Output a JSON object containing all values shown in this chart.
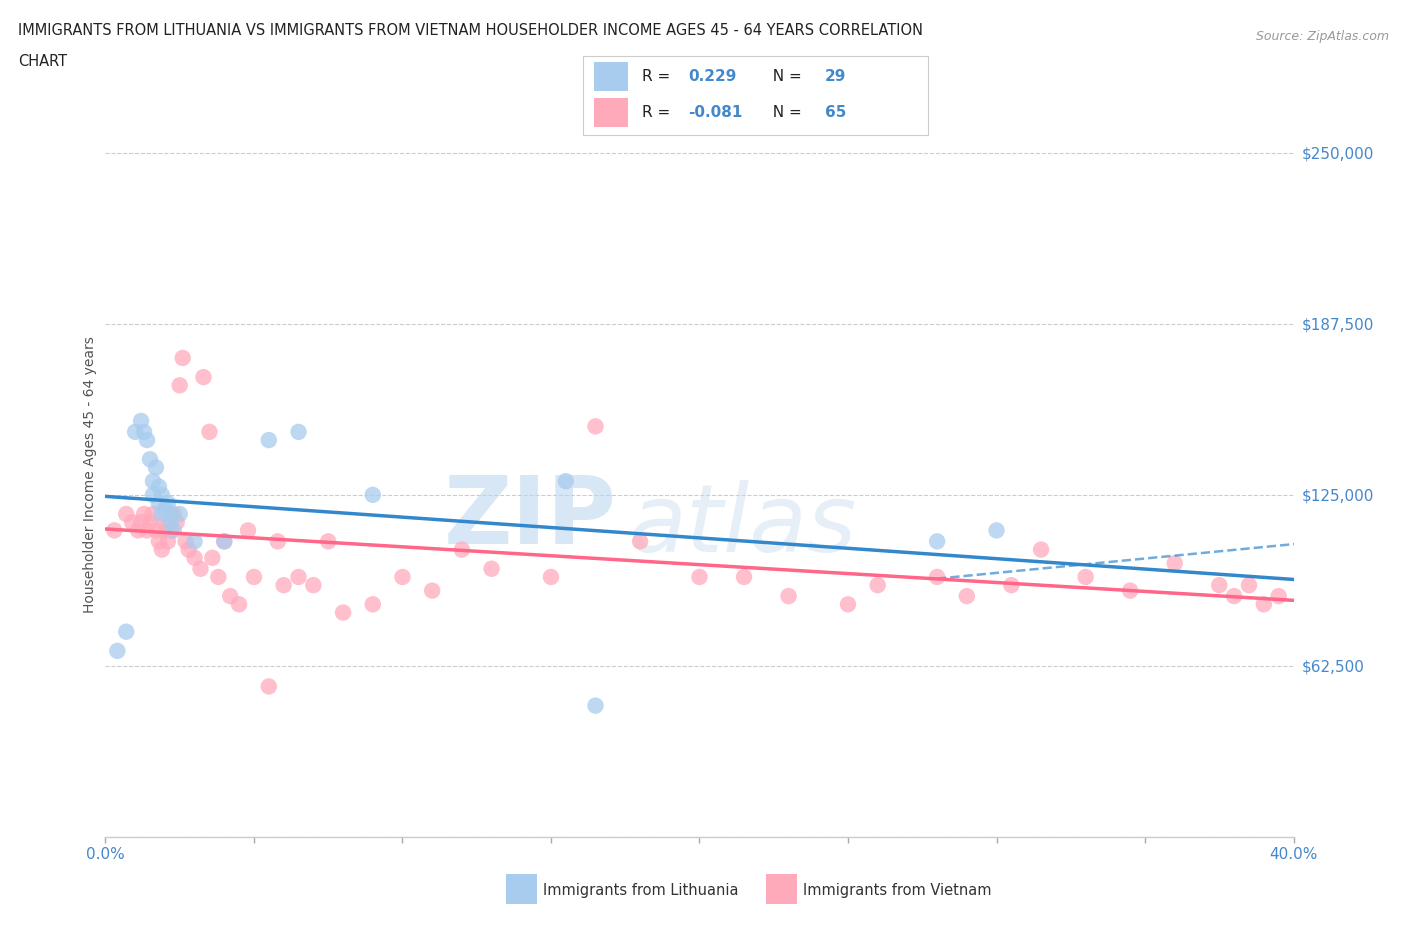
{
  "title_line1": "IMMIGRANTS FROM LITHUANIA VS IMMIGRANTS FROM VIETNAM HOUSEHOLDER INCOME AGES 45 - 64 YEARS CORRELATION",
  "title_line2": "CHART",
  "source_text": "Source: ZipAtlas.com",
  "ylabel": "Householder Income Ages 45 - 64 years",
  "xlim": [
    0.0,
    0.4
  ],
  "ylim": [
    0,
    265000
  ],
  "yticks": [
    0,
    62500,
    125000,
    187500,
    250000
  ],
  "ytick_labels": [
    "",
    "$62,500",
    "$125,000",
    "$187,500",
    "$250,000"
  ],
  "xticks": [
    0.0,
    0.05,
    0.1,
    0.15,
    0.2,
    0.25,
    0.3,
    0.35,
    0.4
  ],
  "xtick_labels": [
    "0.0%",
    "",
    "",
    "",
    "",
    "",
    "",
    "",
    "40.0%"
  ],
  "color_lithuania": "#A8CCEE",
  "color_vietnam": "#FFAABB",
  "color_line_lithuania": "#3388CC",
  "color_line_vietnam": "#FF6688",
  "R_lithuania": 0.229,
  "N_lithuania": 29,
  "R_vietnam": -0.081,
  "N_vietnam": 65,
  "watermark_zip": "ZIP",
  "watermark_atlas": "atlas",
  "lithuania_x": [
    0.004,
    0.007,
    0.01,
    0.012,
    0.013,
    0.014,
    0.015,
    0.016,
    0.016,
    0.017,
    0.018,
    0.018,
    0.019,
    0.019,
    0.02,
    0.021,
    0.022,
    0.022,
    0.023,
    0.025,
    0.03,
    0.04,
    0.055,
    0.065,
    0.09,
    0.155,
    0.165,
    0.28,
    0.3
  ],
  "lithuania_y": [
    68000,
    75000,
    148000,
    152000,
    148000,
    145000,
    138000,
    130000,
    125000,
    135000,
    128000,
    122000,
    125000,
    118000,
    120000,
    122000,
    118000,
    115000,
    112000,
    118000,
    108000,
    108000,
    145000,
    148000,
    125000,
    130000,
    48000,
    108000,
    112000
  ],
  "vietnam_x": [
    0.003,
    0.007,
    0.009,
    0.011,
    0.012,
    0.013,
    0.014,
    0.015,
    0.016,
    0.017,
    0.018,
    0.019,
    0.02,
    0.02,
    0.021,
    0.022,
    0.023,
    0.024,
    0.025,
    0.026,
    0.027,
    0.028,
    0.03,
    0.032,
    0.033,
    0.035,
    0.036,
    0.038,
    0.04,
    0.042,
    0.045,
    0.048,
    0.05,
    0.055,
    0.058,
    0.06,
    0.065,
    0.07,
    0.075,
    0.08,
    0.09,
    0.1,
    0.11,
    0.12,
    0.13,
    0.15,
    0.165,
    0.18,
    0.2,
    0.215,
    0.23,
    0.25,
    0.26,
    0.28,
    0.29,
    0.305,
    0.315,
    0.33,
    0.345,
    0.36,
    0.375,
    0.38,
    0.385,
    0.39,
    0.395
  ],
  "vietnam_y": [
    112000,
    118000,
    115000,
    112000,
    115000,
    118000,
    112000,
    115000,
    118000,
    112000,
    108000,
    105000,
    112000,
    115000,
    108000,
    112000,
    118000,
    115000,
    165000,
    175000,
    108000,
    105000,
    102000,
    98000,
    168000,
    148000,
    102000,
    95000,
    108000,
    88000,
    85000,
    112000,
    95000,
    55000,
    108000,
    92000,
    95000,
    92000,
    108000,
    82000,
    85000,
    95000,
    90000,
    105000,
    98000,
    95000,
    150000,
    108000,
    95000,
    95000,
    88000,
    85000,
    92000,
    95000,
    88000,
    92000,
    105000,
    95000,
    90000,
    100000,
    92000,
    88000,
    92000,
    85000,
    88000
  ]
}
